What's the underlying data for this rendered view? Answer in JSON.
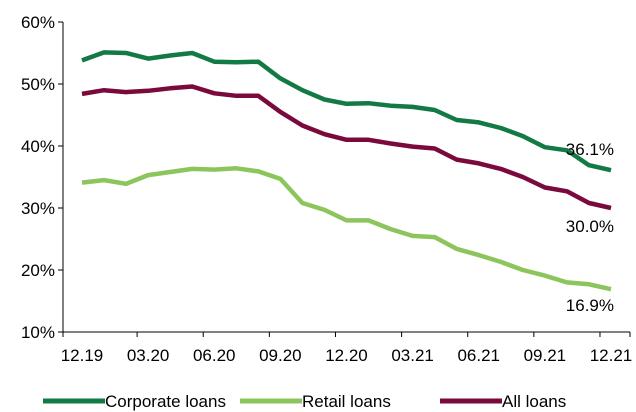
{
  "chart_data": {
    "type": "line",
    "title": "",
    "xlabel": "",
    "ylabel": "",
    "x_ticks": [
      "12.19",
      "03.20",
      "06.20",
      "09.20",
      "12.20",
      "03.21",
      "06.21",
      "09.21",
      "12.21"
    ],
    "y_ticks": [
      "10%",
      "20%",
      "30%",
      "40%",
      "50%",
      "60%"
    ],
    "ylim": [
      10,
      60
    ],
    "grid": false,
    "legend_position": "bottom",
    "series": [
      {
        "name": "Corporate loans",
        "color": "#137a45",
        "values": [
          53.8,
          55.1,
          55.0,
          54.1,
          54.6,
          55.0,
          53.6,
          53.5,
          53.6,
          50.9,
          49.0,
          47.5,
          46.8,
          46.9,
          46.5,
          46.3,
          45.8,
          44.2,
          43.8,
          42.9,
          41.6,
          39.8,
          39.3,
          36.9,
          36.1
        ],
        "end_label": "36.1%"
      },
      {
        "name": "Retail loans",
        "color": "#8dc55d",
        "values": [
          34.1,
          34.5,
          33.9,
          35.3,
          35.8,
          36.3,
          36.2,
          36.4,
          35.9,
          34.7,
          30.8,
          29.7,
          28.0,
          28.0,
          26.6,
          25.5,
          25.3,
          23.4,
          22.4,
          21.3,
          20.0,
          19.1,
          18.0,
          17.7,
          16.9
        ],
        "end_label": "16.9%"
      },
      {
        "name": "All loans",
        "color": "#7b0a3c",
        "values": [
          48.4,
          49.0,
          48.7,
          48.9,
          49.3,
          49.6,
          48.5,
          48.1,
          48.1,
          45.5,
          43.3,
          41.9,
          41.0,
          41.0,
          40.4,
          39.9,
          39.6,
          37.8,
          37.2,
          36.3,
          35.0,
          33.3,
          32.7,
          30.8,
          30.0
        ],
        "end_label": "30.0%"
      }
    ]
  }
}
